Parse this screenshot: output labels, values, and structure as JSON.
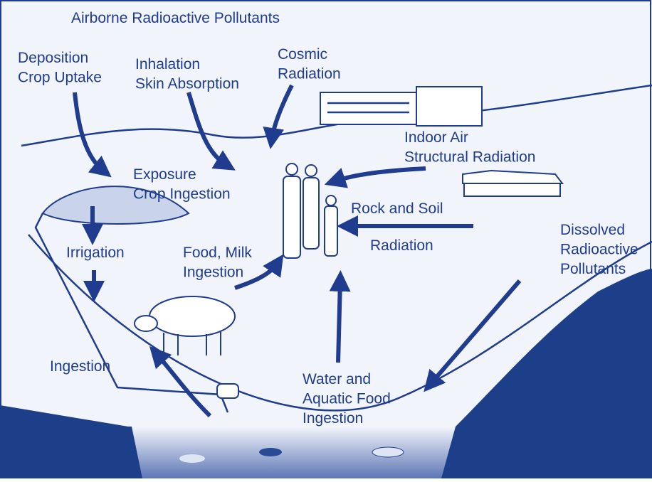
{
  "title": "Airborne Radioactive Pollutants",
  "labels": [
    {
      "lines": [
        "Deposition",
        "Crop Uptake"
      ]
    },
    {
      "lines": [
        "Inhalation",
        "Skin Absorption"
      ]
    },
    {
      "lines": [
        "Cosmic",
        "Radiation"
      ]
    },
    {
      "lines": [
        "Indoor Air",
        "Structural Radiation"
      ]
    },
    {
      "lines": [
        "Exposure",
        "Crop Ingestion"
      ]
    },
    {
      "lines": [
        "Rock and Soil"
      ]
    },
    {
      "lines": [
        "Radiation"
      ]
    },
    {
      "lines": [
        "Dissolved",
        "Radioactive",
        "Pollutants"
      ]
    },
    {
      "lines": [
        "Irrigation"
      ]
    },
    {
      "lines": [
        "Food, Milk",
        "Ingestion"
      ]
    },
    {
      "lines": [
        "Ingestion"
      ]
    },
    {
      "lines": [
        "Water and",
        "Aquatic Food",
        "Ingestion"
      ]
    }
  ]
}
